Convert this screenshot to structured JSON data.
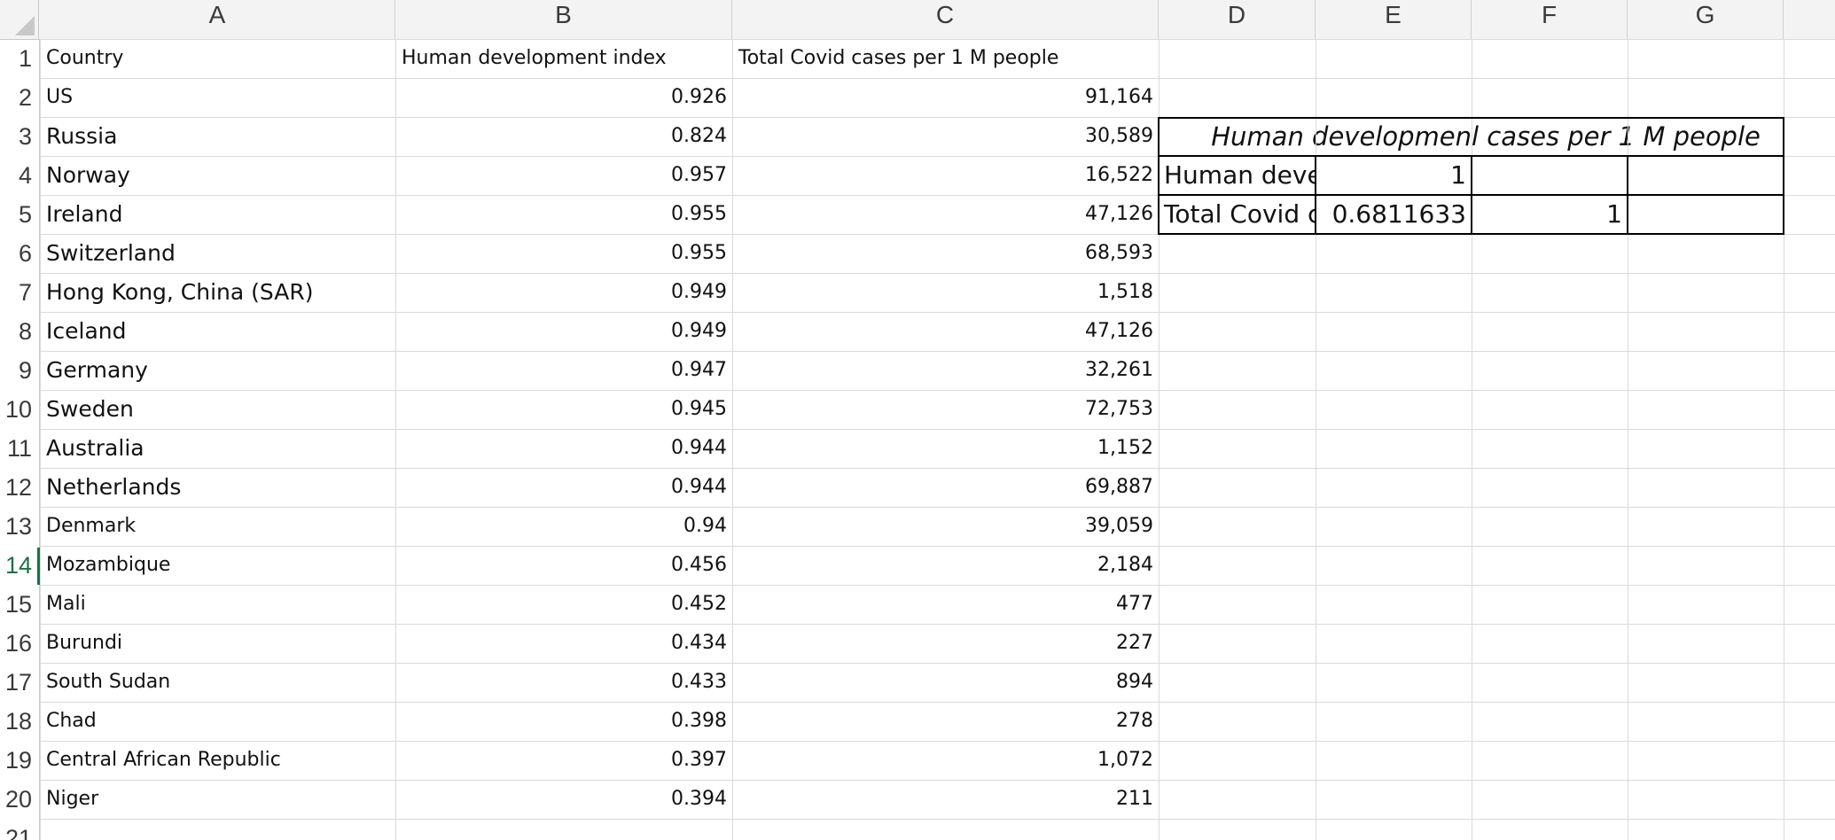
{
  "columns": [
    "A",
    "B",
    "C",
    "D",
    "E",
    "F",
    "G"
  ],
  "rows": [
    "1",
    "2",
    "3",
    "4",
    "5",
    "6",
    "7",
    "8",
    "9",
    "10",
    "11",
    "12",
    "13",
    "14",
    "15",
    "16",
    "17",
    "18",
    "19",
    "20",
    "21"
  ],
  "headers": {
    "country": "Country",
    "hdi": "Human development index",
    "covid": "Total Covid cases per 1 M people"
  },
  "table": [
    {
      "country": "US",
      "hdi": "0.926",
      "covid": "91,164"
    },
    {
      "country": "Russia",
      "hdi": "0.824",
      "covid": "30,589"
    },
    {
      "country": "Norway",
      "hdi": "0.957",
      "covid": "16,522"
    },
    {
      "country": "Ireland",
      "hdi": "0.955",
      "covid": "47,126"
    },
    {
      "country": "Switzerland",
      "hdi": "0.955",
      "covid": "68,593"
    },
    {
      "country": "Hong Kong, China (SAR)",
      "hdi": "0.949",
      "covid": "1,518"
    },
    {
      "country": "Iceland",
      "hdi": "0.949",
      "covid": "47,126"
    },
    {
      "country": "Germany",
      "hdi": "0.947",
      "covid": "32,261"
    },
    {
      "country": "Sweden",
      "hdi": "0.945",
      "covid": "72,753"
    },
    {
      "country": "Australia",
      "hdi": "0.944",
      "covid": "1,152"
    },
    {
      "country": "Netherlands",
      "hdi": "0.944",
      "covid": "69,887"
    },
    {
      "country": "Denmark",
      "hdi": "0.94",
      "covid": "39,059"
    },
    {
      "country": "Mozambique",
      "hdi": "0.456",
      "covid": "2,184"
    },
    {
      "country": "Mali",
      "hdi": "0.452",
      "covid": "477"
    },
    {
      "country": "Burundi",
      "hdi": "0.434",
      "covid": "227"
    },
    {
      "country": "South Sudan",
      "hdi": "0.433",
      "covid": "894"
    },
    {
      "country": "Chad",
      "hdi": "0.398",
      "covid": "278"
    },
    {
      "country": "Central African Republic",
      "hdi": "0.397",
      "covid": "1,072"
    },
    {
      "country": "Niger",
      "hdi": "0.394",
      "covid": "211"
    }
  ],
  "correlation": {
    "col1_header": "Human developmen",
    "col2_header": "l cases per 1 M people",
    "row1_label": "Human devel",
    "row2_label": "Total Covid c",
    "r1c1": "1",
    "r2c1": "0.6811633",
    "r2c2": "1"
  },
  "active_cell": "A14"
}
